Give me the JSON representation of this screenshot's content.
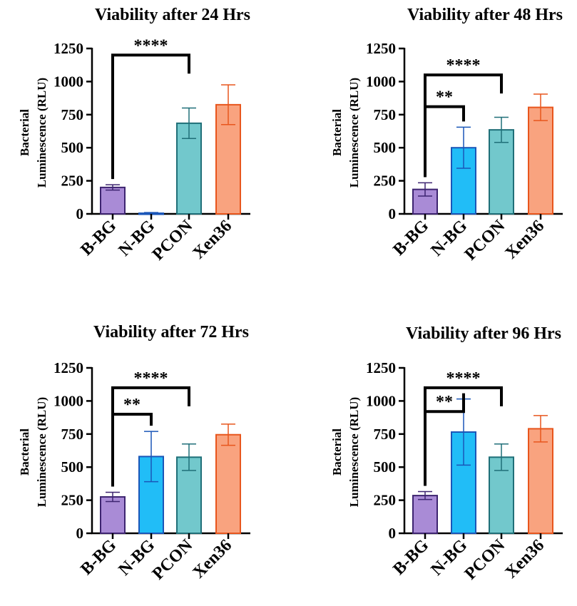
{
  "colors": {
    "B-BG": {
      "fill": "#a98bd6",
      "stroke": "#3d2470"
    },
    "N-BG": {
      "fill": "#21bdf7",
      "stroke": "#1a56b8"
    },
    "PCON": {
      "fill": "#72c8cc",
      "stroke": "#1f6f78"
    },
    "Xen36": {
      "fill": "#f9a37f",
      "stroke": "#e8561d"
    }
  },
  "chart_data": [
    {
      "type": "bar",
      "title": "Viability after 24 Hrs",
      "ylabel_line1": "Bacterial",
      "ylabel_line2": "Luminescence (RLU)",
      "ylim": [
        0,
        1250
      ],
      "yticks": [
        "0",
        "250",
        "500",
        "750",
        "1000",
        "1250"
      ],
      "categories": [
        "B-BG",
        "N-BG",
        "PCON",
        "Xen36"
      ],
      "values": [
        200,
        5,
        685,
        825
      ],
      "errors": [
        20,
        5,
        115,
        150
      ],
      "significance": [
        {
          "from": 0,
          "to": 2,
          "label": "****",
          "level": 1200
        }
      ]
    },
    {
      "type": "bar",
      "title": "Viability after 48 Hrs",
      "ylabel_line1": "Bacterial",
      "ylabel_line2": "Luminescence (RLU)",
      "ylim": [
        0,
        1250
      ],
      "yticks": [
        "0",
        "250",
        "500",
        "750",
        "1000",
        "1250"
      ],
      "categories": [
        "B-BG",
        "N-BG",
        "PCON",
        "Xen36"
      ],
      "values": [
        185,
        500,
        635,
        805
      ],
      "errors": [
        50,
        155,
        95,
        100
      ],
      "significance": [
        {
          "from": 0,
          "to": 2,
          "label": "****",
          "level": 1050
        },
        {
          "from": 0,
          "to": 1,
          "label": "**",
          "level": 810
        }
      ]
    },
    {
      "type": "bar",
      "title": "Viability after 72 Hrs",
      "ylabel_line1": "Bacterial",
      "ylabel_line2": "Luminescence (RLU)",
      "ylim": [
        0,
        1250
      ],
      "yticks": [
        "0",
        "250",
        "500",
        "750",
        "1000",
        "1250"
      ],
      "categories": [
        "B-BG",
        "N-BG",
        "PCON",
        "Xen36"
      ],
      "values": [
        275,
        580,
        575,
        745
      ],
      "errors": [
        35,
        190,
        100,
        80
      ],
      "significance": [
        {
          "from": 0,
          "to": 2,
          "label": "****",
          "level": 1100
        },
        {
          "from": 0,
          "to": 1,
          "label": "**",
          "level": 900
        }
      ]
    },
    {
      "type": "bar",
      "title": "Viability after 96 Hrs",
      "ylabel_line1": "Bacterial",
      "ylabel_line2": "Luminescence (RLU)",
      "ylim": [
        0,
        1250
      ],
      "yticks": [
        "0",
        "250",
        "500",
        "750",
        "1000",
        "1250"
      ],
      "categories": [
        "B-BG",
        "N-BG",
        "PCON",
        "Xen36"
      ],
      "values": [
        285,
        765,
        575,
        790
      ],
      "errors": [
        30,
        250,
        100,
        100
      ],
      "significance": [
        {
          "from": 0,
          "to": 2,
          "label": "****",
          "level": 1100
        },
        {
          "from": 0,
          "to": 1,
          "label": "**",
          "level": 920
        }
      ]
    }
  ]
}
